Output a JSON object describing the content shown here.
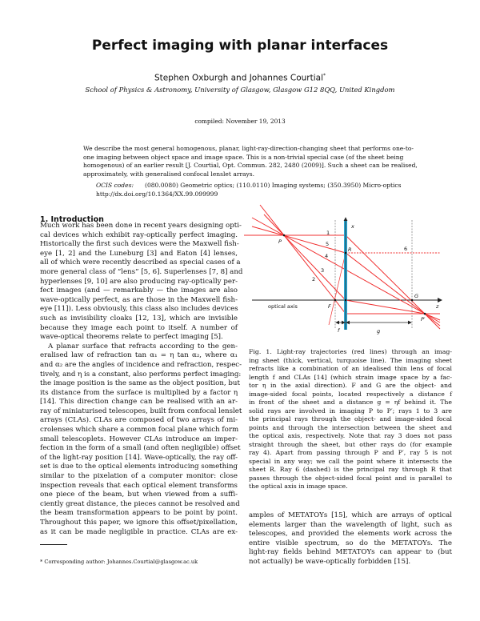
{
  "header": {
    "title": "Perfect imaging with planar interfaces",
    "authors": "Stephen Oxburgh and   Johannes Courtial",
    "author_mark": "*",
    "affiliation": "School of Physics & Astronomy, University of Glasgow, Glasgow G12 8QQ, United Kingdom",
    "compiled": "compiled: November 19, 2013"
  },
  "abstract": {
    "lines": [
      "We describe the most general homogenous, planar, light-ray-direction-changing sheet that performs one-to-",
      "one imaging between object space and image space.  This is a non-trivial special case (of the sheet being",
      "homogenous) of an earlier result [J. Courtial, Opt. Commun. 282, 2480 (2009)]. Such a sheet can be realised,",
      "approximately, with generalised confocal lenslet arrays."
    ],
    "ocis_label": "OCIS codes:",
    "ocis_codes": "(080.0080) Geometric optics; (110.0110) Imaging systems; (350.3950) Micro-optics",
    "doi": "http://dx.doi.org/10.1364/XX.99.099999"
  },
  "introduction": {
    "heading": "1.   Introduction",
    "lines": [
      "Much work has been done in recent years designing opti-",
      "cal devices which exhibit ray-optically perfect imaging.",
      "Historically the first such devices were the Maxwell fish-",
      "eye [1, 2] and the Luneburg [3] and Eaton [4] lenses,",
      "all of which were recently described as special cases of a",
      "more general class of “lens” [5, 6]. Superlenses [7, 8] and",
      "hyperlenses [9, 10] are also producing ray-optically per-",
      "fect images (and — remarkably — the images are also",
      "wave-optically perfect, as are those in the Maxwell fish-",
      "eye [11]). Less obviously, this class also includes devices",
      "such as invisibility cloaks [12, 13], which are invisible",
      "because they image each point to itself.  A number of",
      "wave-optical theorems relate to perfect imaging [5].",
      "A planar surface that refracts according to the gen-",
      "eralised law of refraction tan α₁ = η tan α₂, where α₁",
      "and α₂ are the angles of incidence and refraction, respec-",
      "tively, and η is a constant, also performs perfect imaging:",
      "the image position is the same as the object position, but",
      "its distance from the surface is multiplied by a factor η",
      "[14]. This direction change can be realised with an ar-",
      "ray of miniaturised telescopes, built from confocal lenslet",
      "arrays (CLAs). CLAs are composed of two arrays of mi-",
      "crolenses which share a common focal plane which form",
      "small telescoplets. However CLAs introduce an imper-",
      "fection in the form of a small (and often negligible) offset",
      "of the light-ray position [14]. Wave-optically, the ray off-",
      "set is due to the optical elements introducing something",
      "similar to the pixelation of a computer monitor: close",
      "inspection reveals that each optical element transforms",
      "one piece of the beam, but when viewed from a suffi-",
      "ciently great distance, the pieces cannot be resolved and",
      "the beam transformation appears to be point by point.",
      "Throughout this paper, we ignore this offset/pixellation,",
      "as it can be made negligible in practice.  CLAs are ex-"
    ]
  },
  "footnote": "* Corresponding author: Johannes.Courtial@glasgow.ac.uk",
  "figure": {
    "labels": {
      "x_axis": "x",
      "z_axis": "z",
      "optical_axis": "optical axis",
      "P": "P",
      "P_prime": "P′",
      "R": "R",
      "F": "F",
      "G": "G",
      "f": "f",
      "g": "g",
      "ray1": "1",
      "ray2": "2",
      "ray3": "3",
      "ray4": "4",
      "ray5": "5",
      "ray6": "6"
    },
    "colors": {
      "rays": "#f03030",
      "sheet": "#29a9d6",
      "axis": "#222222",
      "dashed_guides": "#777777"
    },
    "caption_lines": [
      "Fig. 1.  Light-ray trajectories (red lines) through an imag-",
      "ing sheet (thick, vertical, turquoise line). The imaging sheet",
      "refracts like a combination of an idealised thin lens of focal",
      "length f and CLAs [14] (which strain image space by a fac-",
      "tor η in the axial direction).  F and G are the object- and",
      "image-sided focal points, located respectively a distance f",
      "in front of the sheet and a distance g = ηf behind it. The",
      "solid rays are involved in imaging P to P′; rays 1 to 3 are",
      "the principal rays through the object- and image-sided focal",
      "points and through the intersection between the sheet and",
      "the optical axis, respectively. Note that ray 3 does not pass",
      "straight through the sheet, but other rays do (for example",
      "ray 4).  Apart from passing through P and P′, ray 5 is not",
      "special in any way; we call the point where it intersects the",
      "sheet R. Ray 6 (dashed) is the principal ray through R that",
      "passes through the object-sided focal point and is parallel to",
      "the optical axis in image space."
    ]
  },
  "right_column": {
    "lines": [
      "amples of METATOYs [15], which are arrays of optical",
      "elements larger than the wavelength of light, such as",
      "telescopes, and provided the elements work across the",
      "entire visible spectrum, so do the METATOYs.  The",
      "light-ray fields behind METATOYs can appear to (but",
      "not actually) be wave-optically forbidden [15]."
    ]
  }
}
